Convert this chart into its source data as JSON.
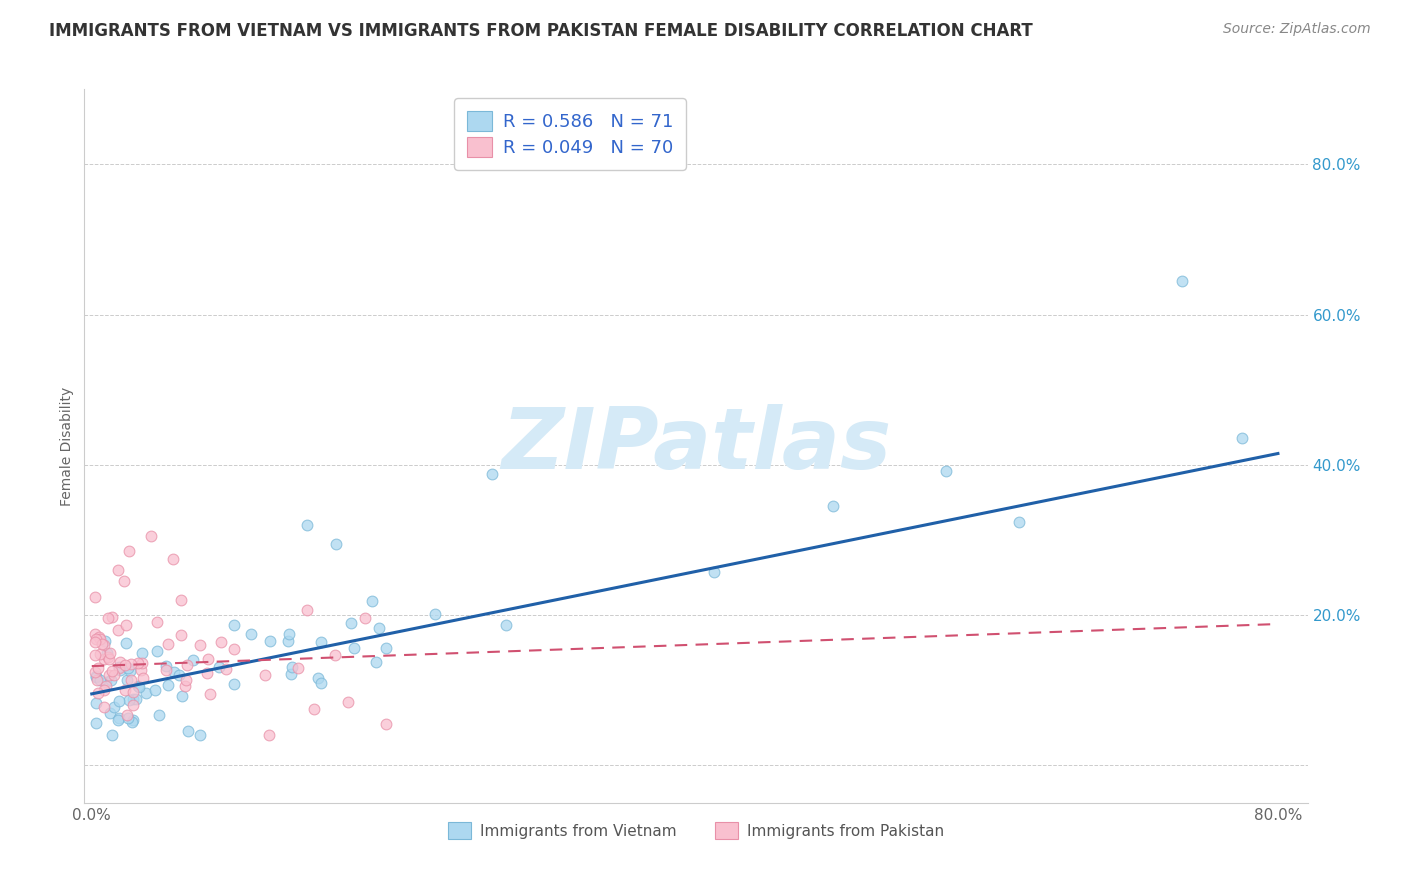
{
  "title": "IMMIGRANTS FROM VIETNAM VS IMMIGRANTS FROM PAKISTAN FEMALE DISABILITY CORRELATION CHART",
  "source": "Source: ZipAtlas.com",
  "ylabel": "Female Disability",
  "xlim": [
    -0.005,
    0.82
  ],
  "ylim": [
    -0.05,
    0.9
  ],
  "ytick_values": [
    0.0,
    0.2,
    0.4,
    0.6,
    0.8
  ],
  "ytick_labels": [
    "",
    "20.0%",
    "40.0%",
    "60.0%",
    "80.0%"
  ],
  "xtick_values": [
    0.0,
    0.1,
    0.2,
    0.3,
    0.4,
    0.5,
    0.6,
    0.7,
    0.8
  ],
  "xtick_labels": [
    "0.0%",
    "",
    "",
    "",
    "",
    "",
    "",
    "",
    "80.0%"
  ],
  "vietnam_face_color": "#ADD8F0",
  "vietnam_edge_color": "#7BB8D8",
  "pakistan_face_color": "#F9C0CF",
  "pakistan_edge_color": "#E890A8",
  "vietnam_line_color": "#2060A8",
  "pakistan_line_color": "#D05070",
  "vietnam_R": 0.586,
  "vietnam_N": 71,
  "pakistan_R": 0.049,
  "pakistan_N": 70,
  "legend_color": "#3366CC",
  "background_color": "#FFFFFF",
  "grid_color": "#CCCCCC",
  "watermark_color": "#D5EAF7",
  "viet_line_y0": 0.095,
  "viet_line_y1": 0.415,
  "pak_line_y0": 0.132,
  "pak_line_y1": 0.188,
  "marker_size": 60
}
